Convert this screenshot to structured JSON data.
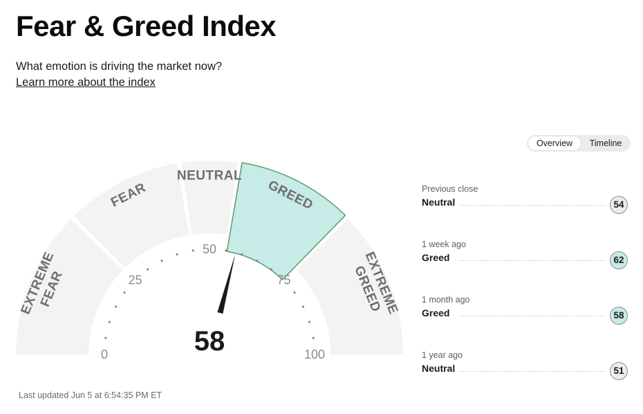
{
  "header": {
    "title": "Fear & Greed Index",
    "subtitle": "What emotion is driving the market now?",
    "learn_more": "Learn more about the index"
  },
  "view_toggle": {
    "options": [
      "Overview",
      "Timeline"
    ],
    "selected": "Overview"
  },
  "gauge": {
    "value": 58,
    "rating": "Greed",
    "segments": [
      {
        "lines": [
          "EXTREME",
          "FEAR"
        ],
        "from": 0,
        "to": 25
      },
      {
        "lines": [
          "FEAR"
        ],
        "from": 25,
        "to": 45
      },
      {
        "lines": [
          "NEUTRAL"
        ],
        "from": 45,
        "to": 55
      },
      {
        "lines": [
          "GREED"
        ],
        "from": 55,
        "to": 75
      },
      {
        "lines": [
          "EXTREME",
          "GREED"
        ],
        "from": 75,
        "to": 100
      }
    ],
    "scale_labels": [
      "0",
      "25",
      "50",
      "75",
      "100"
    ],
    "active_fill": "#c7ebe6",
    "active_stroke": "#5b9a6b",
    "inactive_fill": "#f3f3f3"
  },
  "last_updated": "Last updated Jun 5 at 6:54:35 PM ET",
  "history": [
    {
      "when": "Previous close",
      "rating": "Neutral",
      "value": "54",
      "color": "#ececec"
    },
    {
      "when": "1 week ago",
      "rating": "Greed",
      "value": "62",
      "color": "#c7ebe6"
    },
    {
      "when": "1 month ago",
      "rating": "Greed",
      "value": "58",
      "color": "#c7ebe6"
    },
    {
      "when": "1 year ago",
      "rating": "Neutral",
      "value": "51",
      "color": "#ececec"
    }
  ]
}
